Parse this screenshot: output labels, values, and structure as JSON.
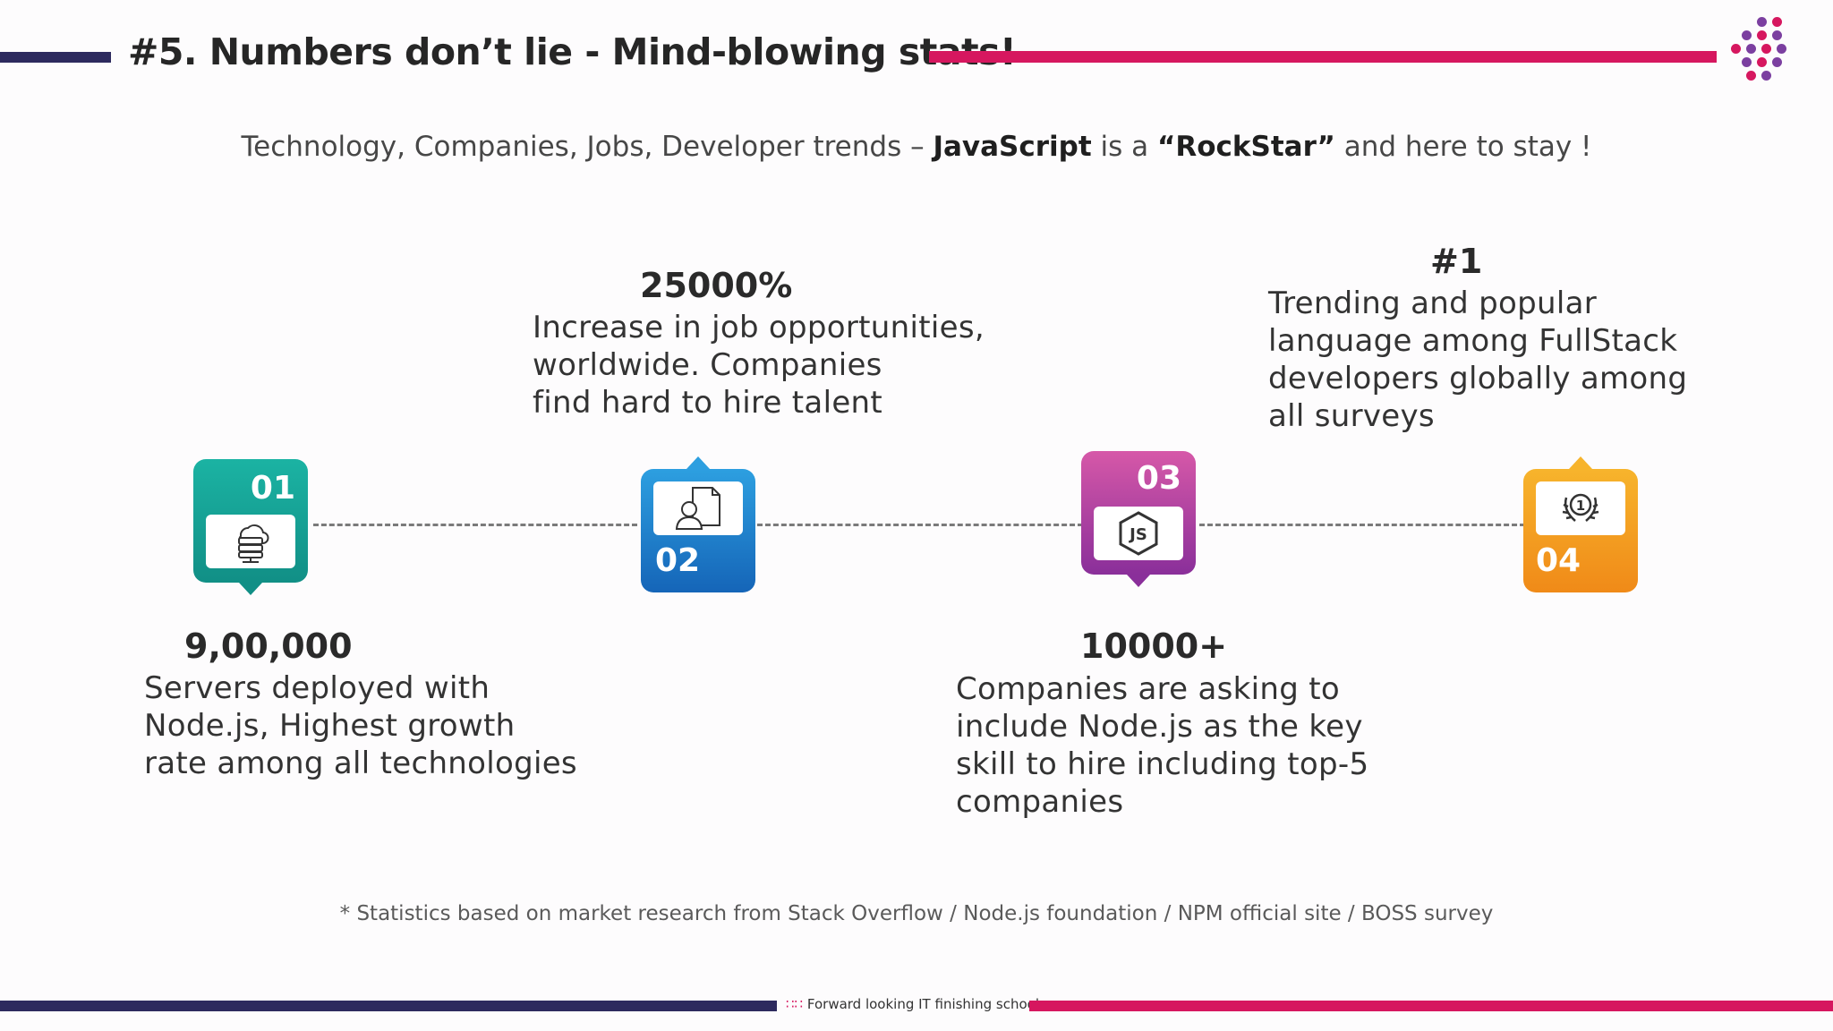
{
  "header": {
    "title": "#5. Numbers don’t lie - Mind-blowing stats!"
  },
  "subtitle": {
    "prefix": "Technology, Companies, Jobs, Developer trends – ",
    "bold1": "JavaScript",
    "middle": " is a ",
    "bold2": "“RockStar”",
    "suffix": " and here to stay !"
  },
  "steps": [
    {
      "badge": "01",
      "icon": "cloud-server-icon",
      "color_top": "#1bb3a3",
      "color_bottom": "#118f86",
      "stat": "9,00,000",
      "description": "Servers deployed with\nNode.js, Highest growth\nrate among all technologies"
    },
    {
      "badge": "02",
      "icon": "person-document-icon",
      "color_top": "#2d9fe0",
      "color_bottom": "#1565b8",
      "stat": "25000%",
      "description": "Increase in job opportunities,\nworldwide. Companies\nfind hard to hire talent"
    },
    {
      "badge": "03",
      "icon": "nodejs-icon",
      "color_top": "#d658a8",
      "color_bottom": "#8a2f9a",
      "stat": "10000+",
      "description": "Companies are asking to\ninclude Node.js as the key\nskill to hire including top-5\ncompanies"
    },
    {
      "badge": "04",
      "icon": "award-number-one-icon",
      "color_top": "#f7b42c",
      "color_bottom": "#f08a18",
      "stat": "#1",
      "description": "Trending  and popular\nlanguage among FullStack\ndevelopers globally among\nall surveys"
    }
  ],
  "footnote": "* Statistics based on market research from Stack Overflow / Node.js foundation / NPM official site / BOSS survey",
  "footer": {
    "tagline": "Forward looking IT finishing school"
  },
  "colors": {
    "navy": "#2d2a5e",
    "magenta": "#d6175f",
    "purple": "#7b3fa0"
  }
}
